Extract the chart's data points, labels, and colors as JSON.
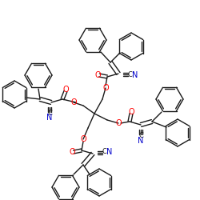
{
  "bg_color": "#ffffff",
  "bond_color": "#1a1a1a",
  "oxygen_color": "#ff0000",
  "nitrogen_color": "#0000cc",
  "lw": 1.0,
  "fig_size": [
    2.5,
    2.5
  ],
  "dpi": 100,
  "xlim": [
    0,
    250
  ],
  "ylim": [
    0,
    250
  ]
}
